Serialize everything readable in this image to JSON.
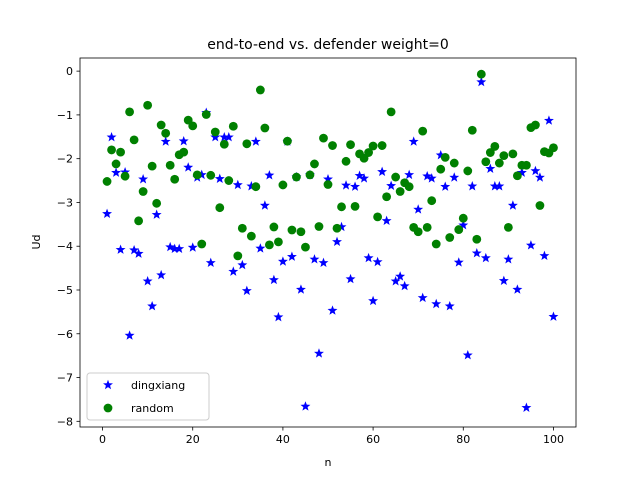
{
  "chart_data": {
    "type": "scatter",
    "title": "end-to-end vs. defender weight=0",
    "xlabel": "n",
    "ylabel": "Ud",
    "xlim": [
      -5,
      105
    ],
    "ylim": [
      -8.13,
      0.3
    ],
    "xticks": [
      "0",
      "20",
      "40",
      "60",
      "80",
      "100"
    ],
    "yticks": [
      "0",
      "−1",
      "−2",
      "−3",
      "−4",
      "−5",
      "−6",
      "−7",
      "−8"
    ],
    "legend_position": "lower-left",
    "series": [
      {
        "name": "dingxiang",
        "marker": "star",
        "color": "#0000ff",
        "x": [
          1,
          2,
          3,
          4,
          5,
          6,
          7,
          8,
          9,
          10,
          11,
          12,
          13,
          14,
          15,
          16,
          17,
          18,
          19,
          20,
          21,
          22,
          23,
          24,
          25,
          26,
          27,
          28,
          29,
          30,
          31,
          32,
          33,
          34,
          35,
          36,
          37,
          38,
          39,
          40,
          41,
          42,
          43,
          44,
          45,
          46,
          47,
          48,
          49,
          50,
          51,
          52,
          53,
          54,
          55,
          56,
          57,
          58,
          59,
          60,
          61,
          62,
          63,
          64,
          65,
          66,
          67,
          68,
          69,
          70,
          71,
          72,
          73,
          74,
          75,
          76,
          77,
          78,
          79,
          80,
          81,
          82,
          83,
          84,
          85,
          86,
          87,
          88,
          89,
          90,
          91,
          92,
          93,
          94,
          95,
          96,
          97,
          98,
          99,
          100
        ],
        "y": [
          -3.26,
          -1.51,
          -2.32,
          -4.08,
          -2.31,
          -6.04,
          -4.09,
          -4.17,
          -2.47,
          -4.8,
          -5.37,
          -3.28,
          -4.66,
          -1.61,
          -4.02,
          -4.06,
          -4.06,
          -1.6,
          -2.2,
          -4.03,
          -2.43,
          -2.37,
          -0.95,
          -4.38,
          -1.51,
          -2.46,
          -1.51,
          -1.51,
          -4.58,
          -2.6,
          -4.43,
          -5.02,
          -2.63,
          -1.61,
          -4.05,
          -3.07,
          -2.38,
          -4.77,
          -5.62,
          -4.35,
          -1.61,
          -4.24,
          -2.42,
          -4.99,
          -7.66,
          -2.37,
          -4.3,
          -6.45,
          -4.38,
          -2.47,
          -5.47,
          -3.9,
          -3.56,
          -2.61,
          -4.75,
          -2.64,
          -2.39,
          -2.45,
          -4.27,
          -5.25,
          -4.36,
          -2.3,
          -3.42,
          -2.62,
          -4.8,
          -4.69,
          -4.91,
          -2.37,
          -1.61,
          -3.16,
          -5.18,
          -2.4,
          -2.45,
          -5.32,
          -1.92,
          -2.64,
          -5.37,
          -2.43,
          -4.37,
          -3.52,
          -6.49,
          -2.63,
          -4.16,
          -0.25,
          -4.27,
          -2.23,
          -2.63,
          -2.63,
          -4.79,
          -4.3,
          -3.07,
          -4.99,
          -2.32,
          -7.69,
          -3.98,
          -2.28,
          -2.43,
          -4.22,
          -1.13,
          -5.61
        ]
      },
      {
        "name": "random",
        "marker": "circle",
        "color": "#008000",
        "x": [
          1,
          2,
          3,
          4,
          5,
          6,
          7,
          8,
          9,
          10,
          11,
          12,
          13,
          14,
          15,
          16,
          17,
          18,
          19,
          20,
          21,
          22,
          23,
          24,
          25,
          26,
          27,
          28,
          29,
          30,
          31,
          32,
          33,
          34,
          35,
          36,
          37,
          38,
          39,
          40,
          41,
          42,
          43,
          44,
          45,
          46,
          47,
          48,
          49,
          50,
          51,
          52,
          53,
          54,
          55,
          56,
          57,
          58,
          59,
          60,
          61,
          62,
          63,
          64,
          65,
          66,
          67,
          68,
          69,
          70,
          71,
          72,
          73,
          74,
          75,
          76,
          77,
          78,
          79,
          80,
          81,
          82,
          83,
          84,
          85,
          86,
          87,
          88,
          89,
          90,
          91,
          92,
          93,
          94,
          95,
          96,
          97,
          98,
          99,
          100
        ],
        "y": [
          -2.52,
          -1.8,
          -2.12,
          -1.85,
          -2.4,
          -0.93,
          -1.57,
          -3.42,
          -2.75,
          -0.78,
          -2.17,
          -3.02,
          -1.23,
          -1.42,
          -2.15,
          -2.47,
          -1.91,
          -1.85,
          -1.12,
          -1.25,
          -2.37,
          -3.95,
          -0.99,
          -2.38,
          -1.39,
          -3.12,
          -1.67,
          -2.5,
          -1.26,
          -4.22,
          -3.59,
          -1.66,
          -3.77,
          -2.64,
          -0.43,
          -1.3,
          -3.97,
          -3.56,
          -3.9,
          -2.6,
          -1.6,
          -3.63,
          -2.42,
          -3.67,
          -4.02,
          -2.37,
          -2.12,
          -3.55,
          -1.53,
          -2.59,
          -1.7,
          -3.59,
          -3.1,
          -2.06,
          -1.68,
          -3.09,
          -1.89,
          -1.99,
          -1.86,
          -1.71,
          -3.33,
          -1.7,
          -2.87,
          -0.93,
          -2.42,
          -2.75,
          -2.55,
          -2.64,
          -3.57,
          -3.67,
          -1.37,
          -3.57,
          -2.96,
          -3.95,
          -2.24,
          -1.97,
          -3.8,
          -2.1,
          -3.62,
          -3.36,
          -2.28,
          -1.35,
          -3.84,
          -0.07,
          -2.07,
          -1.86,
          -1.72,
          -2.1,
          -1.93,
          -3.57,
          -1.89,
          -2.39,
          -2.15,
          -2.15,
          -1.29,
          -1.23,
          -3.07,
          -1.84,
          -1.87,
          -1.75
        ]
      }
    ]
  }
}
